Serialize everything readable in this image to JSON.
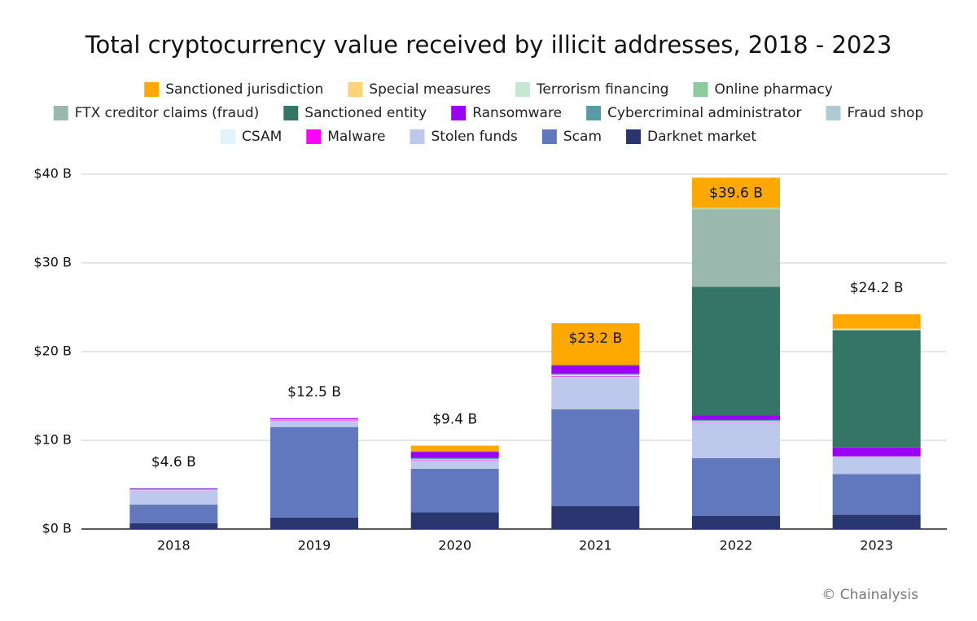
{
  "chart_data": {
    "type": "bar",
    "stacked": true,
    "title": "Total cryptocurrency value received by illicit addresses, 2018 - 2023",
    "source": "© Chainalysis",
    "categories": [
      "2018",
      "2019",
      "2020",
      "2021",
      "2022",
      "2023"
    ],
    "series": [
      {
        "name": "Sanctioned jurisdiction",
        "color": "#FFA800",
        "values": [
          0,
          0,
          0.65,
          4.7,
          3.4,
          1.6
        ]
      },
      {
        "name": "Special measures",
        "color": "#FFD37A",
        "values": [
          0,
          0,
          0,
          0,
          0.05,
          0.1
        ]
      },
      {
        "name": "Terrorism financing",
        "color": "#C5E8D5",
        "values": [
          0,
          0,
          0,
          0,
          0.05,
          0.05
        ]
      },
      {
        "name": "Online pharmacy",
        "color": "#8CCB9E",
        "values": [
          0,
          0,
          0,
          0,
          0.1,
          0.05
        ]
      },
      {
        "name": "FTX creditor claims (fraud)",
        "color": "#9BB8AF",
        "values": [
          0,
          0,
          0,
          0,
          8.7,
          0
        ]
      },
      {
        "name": "Sanctioned entity",
        "color": "#357565",
        "values": [
          0,
          0,
          0.05,
          0.1,
          14.5,
          13.2
        ]
      },
      {
        "name": "Ransomware",
        "color": "#9B00F5",
        "values": [
          0.05,
          0.1,
          0.7,
          0.9,
          0.5,
          1.0
        ]
      },
      {
        "name": "Cybercriminal administrator",
        "color": "#5A99A8",
        "values": [
          0.1,
          0.05,
          0.1,
          0.1,
          0.1,
          0.02
        ]
      },
      {
        "name": "Fraud shop",
        "color": "#AFCBD1",
        "values": [
          0.05,
          0.05,
          0.1,
          0.1,
          0.1,
          0.02
        ]
      },
      {
        "name": "CSAM",
        "color": "#E2F3FB",
        "values": [
          0.03,
          0.05,
          0.05,
          0.05,
          0.05,
          0.03
        ]
      },
      {
        "name": "Malware",
        "color": "#FF00FF",
        "values": [
          0.02,
          0.05,
          0.05,
          0.05,
          0.05,
          0.03
        ]
      },
      {
        "name": "Stolen funds",
        "color": "#BCC8EC",
        "values": [
          1.6,
          0.7,
          0.9,
          3.7,
          4.0,
          1.9
        ]
      },
      {
        "name": "Scam",
        "color": "#6178BF",
        "values": [
          2.1,
          10.2,
          4.9,
          10.9,
          6.5,
          4.6
        ]
      },
      {
        "name": "Darknet market",
        "color": "#2A3670",
        "values": [
          0.65,
          1.3,
          1.9,
          2.6,
          1.5,
          1.6
        ]
      }
    ],
    "totals": {
      "values": [
        4.6,
        12.5,
        9.4,
        23.2,
        39.6,
        24.2
      ],
      "value_labels": [
        "$4.6 B",
        "$12.5 B",
        "$9.4 B",
        "$23.2 B",
        "$39.6 B",
        "$24.2 B"
      ]
    },
    "ylim": [
      0,
      40
    ],
    "yticks": [
      {
        "value": 0,
        "label": "$0 B"
      },
      {
        "value": 10,
        "label": "$10 B"
      },
      {
        "value": 20,
        "label": "$20 B"
      },
      {
        "value": 30,
        "label": "$30 B"
      },
      {
        "value": 40,
        "label": "$40 B"
      }
    ],
    "grid": true
  }
}
